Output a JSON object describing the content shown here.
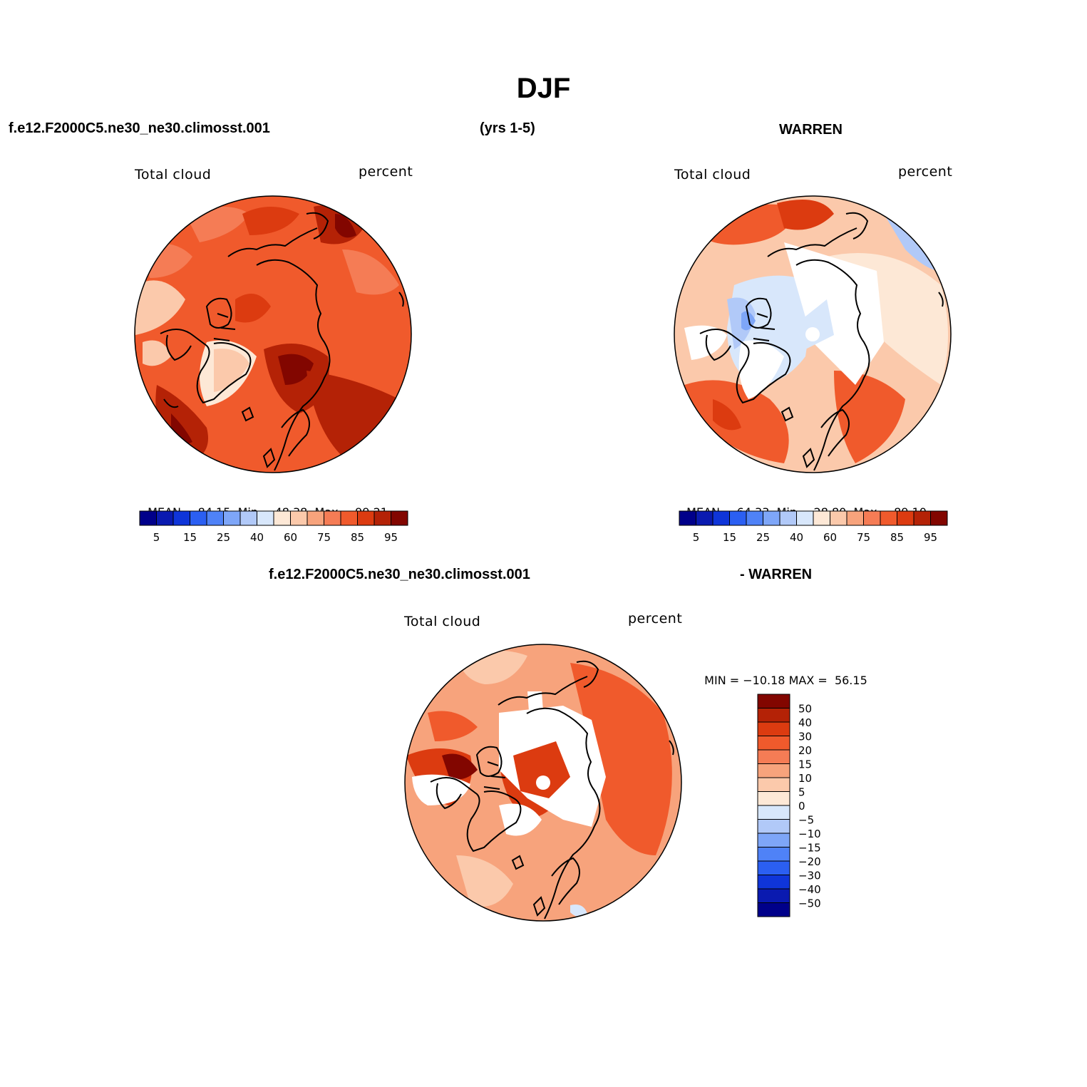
{
  "header": {
    "title": "DJF",
    "case_name": "f.e12.F2000C5.ne30_ne30.climosst.001",
    "years": "(yrs 1-5)",
    "obs_name": "WARREN",
    "diff_case_name": "f.e12.F2000C5.ne30_ne30.climosst.001",
    "diff_obs_name": "- WARREN"
  },
  "panels": [
    {
      "id": "model",
      "variable_label": "Total cloud",
      "units_label": "percent",
      "stats": {
        "mean_label": "MEAN=",
        "mean": "84.15",
        "min_label": "Min=",
        "min": "48.38",
        "max_label": "Max=",
        "max": "99.21"
      }
    },
    {
      "id": "obs",
      "variable_label": "Total cloud",
      "units_label": "percent",
      "stats": {
        "mean_label": "MEAN=",
        "mean": "64.33",
        "min_label": "Min=",
        "min": "28.80",
        "max_label": "Max=",
        "max": "89.10"
      }
    },
    {
      "id": "difference",
      "variable_label": "Total cloud",
      "units_label": "percent",
      "stats": {
        "min_label": "MIN =",
        "min": "−10.18",
        "max_label": "MAX =",
        "max": "56.15"
      }
    }
  ],
  "colorbar_abs": {
    "colors": [
      "#00008a",
      "#0a1ab0",
      "#0f35d9",
      "#2b5ff2",
      "#4f82f7",
      "#7ea6f8",
      "#b1c9f8",
      "#d8e7fb",
      "#fde8d6",
      "#fbc9ab",
      "#f7a37c",
      "#f57c55",
      "#f05a2c",
      "#dc3b10",
      "#b42206",
      "#820600"
    ],
    "tick_labels": [
      "5",
      "15",
      "25",
      "40",
      "60",
      "75",
      "85",
      "95"
    ]
  },
  "colorbar_diff": {
    "colors": [
      "#820600",
      "#b42206",
      "#dc3b10",
      "#f05a2c",
      "#f57c55",
      "#f7a37c",
      "#fbc9ab",
      "#fde8d6",
      "#d8e7fb",
      "#b1c9f8",
      "#7ea6f8",
      "#4f82f7",
      "#2b5ff2",
      "#0f35d9",
      "#0a1ab0",
      "#00008a"
    ],
    "tick_labels": [
      "50",
      "40",
      "30",
      "20",
      "15",
      "10",
      "5",
      "0",
      "−5",
      "−10",
      "−15",
      "−20",
      "−30",
      "−40",
      "−50"
    ]
  }
}
